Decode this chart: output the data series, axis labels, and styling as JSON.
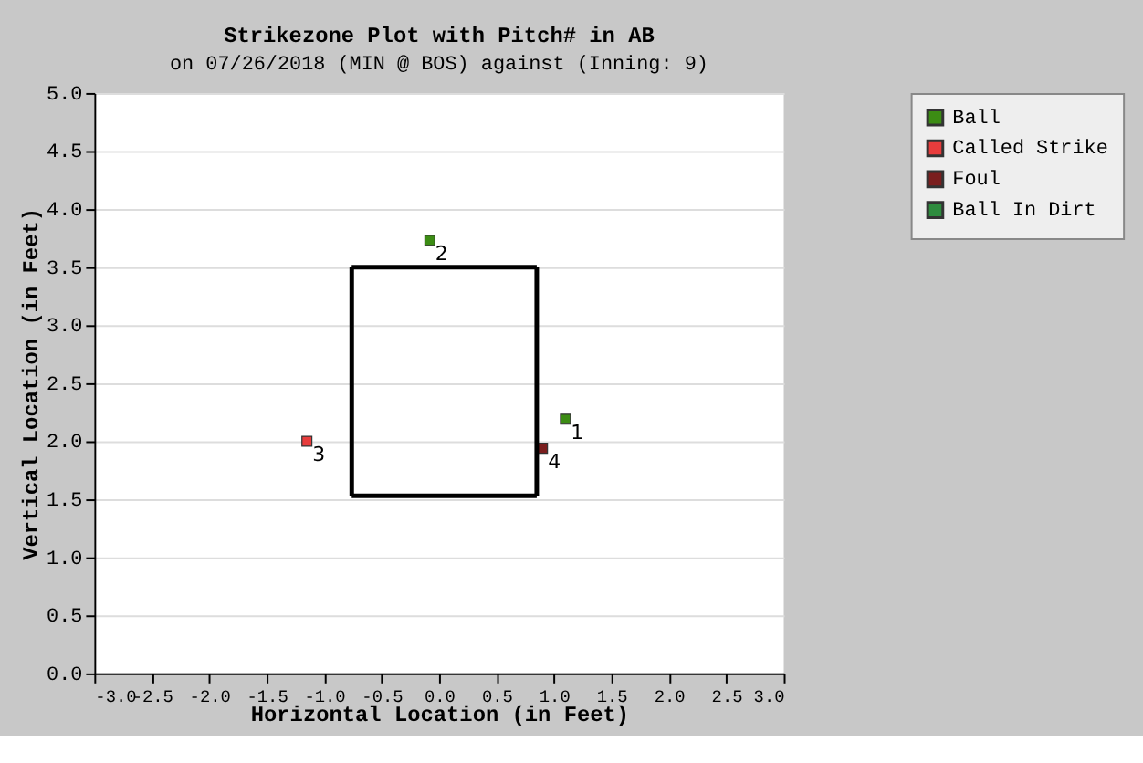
{
  "chart_data": {
    "type": "scatter",
    "title": "Strikezone Plot with Pitch# in AB",
    "subtitle": "on 07/26/2018 (MIN @ BOS) against  (Inning: 9)",
    "xlabel": "Horizontal Location (in Feet)",
    "ylabel": "Vertical Location (in Feet)",
    "xlim": [
      -3.0,
      3.0
    ],
    "ylim": [
      0.0,
      5.0
    ],
    "xticks": [
      {
        "value": -3,
        "label": "-3.0"
      },
      {
        "value": -2.5,
        "label": "-2.5"
      },
      {
        "value": -2,
        "label": "-2.0"
      },
      {
        "value": -1.5,
        "label": "-1.5"
      },
      {
        "value": -1,
        "label": "-1.0"
      },
      {
        "value": -0.5,
        "label": "-0.5"
      },
      {
        "value": 0,
        "label": "0.0"
      },
      {
        "value": 0.5,
        "label": "0.5"
      },
      {
        "value": 1,
        "label": "1.0"
      },
      {
        "value": 1.5,
        "label": "1.5"
      },
      {
        "value": 2,
        "label": "2.0"
      },
      {
        "value": 2.5,
        "label": "2.5"
      },
      {
        "value": 3,
        "label": "3.0"
      }
    ],
    "yticks": [
      {
        "value": 0,
        "label": "0.0"
      },
      {
        "value": 0.5,
        "label": "0.5"
      },
      {
        "value": 1,
        "label": "1.0"
      },
      {
        "value": 1.5,
        "label": "1.5"
      },
      {
        "value": 2,
        "label": "2.0"
      },
      {
        "value": 2.5,
        "label": "2.5"
      },
      {
        "value": 3,
        "label": "3.0"
      },
      {
        "value": 3.5,
        "label": "3.5"
      },
      {
        "value": 4,
        "label": "4.0"
      },
      {
        "value": 4.5,
        "label": "4.5"
      },
      {
        "value": 5,
        "label": "5.0"
      }
    ],
    "annotations": [
      {
        "text": "1",
        "x": 1.1,
        "y": 2.19
      },
      {
        "text": "2",
        "x": -0.08,
        "y": 3.73
      },
      {
        "text": "3",
        "x": -1.15,
        "y": 2.0
      },
      {
        "text": "4",
        "x": 0.9,
        "y": 1.94
      }
    ],
    "grid": "y",
    "legend": "top right",
    "marker": "square",
    "series": [
      {
        "name": "Ball",
        "color": "#3c8c14",
        "x": [
          1.1,
          -0.08
        ],
        "values": [
          2.19,
          3.73
        ]
      },
      {
        "name": "Called Strike",
        "color": "#e83c3c",
        "x": [
          -1.15
        ],
        "values": [
          2.0
        ]
      },
      {
        "name": "Foul",
        "color": "#7a1e1e",
        "x": [
          0.9
        ],
        "values": [
          1.94
        ]
      },
      {
        "name": "Ball In Dirt",
        "color": "#2e8b3e"
      },
      {
        "type": "line",
        "color": "#000000",
        "x": [
          -0.76,
          0.85
        ],
        "values": [
          1.53,
          1.53
        ],
        "marker": "none"
      },
      {
        "type": "line",
        "color": "#000000",
        "x": [
          0.85,
          0.85
        ],
        "values": [
          1.53,
          3.5
        ],
        "marker": "none"
      },
      {
        "type": "line",
        "color": "#000000",
        "x": [
          -0.76,
          0.85
        ],
        "values": [
          3.5,
          3.5
        ],
        "marker": "none"
      },
      {
        "type": "line",
        "color": "#000000",
        "x": [
          -0.76,
          -0.76
        ],
        "values": [
          1.53,
          3.5
        ],
        "marker": "none"
      }
    ]
  }
}
